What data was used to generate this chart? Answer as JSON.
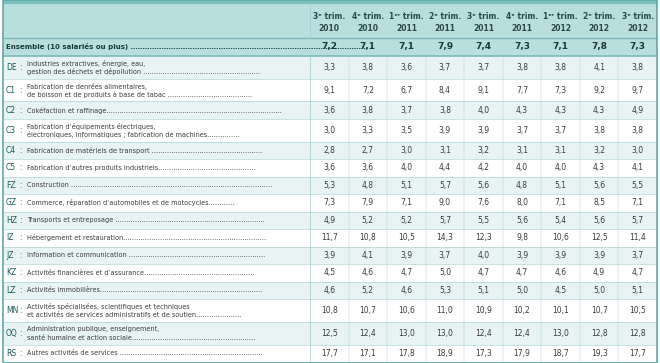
{
  "header_row1": [
    "3ᵉ trim.",
    "4ᵉ trim.",
    "1ᵉʳ trim.",
    "2ᵉ trim.",
    "3ᵉ trim.",
    "4ᵉ trim.",
    "1ᵉʳ trim.",
    "2ᵉ trim.",
    "3ᵉ trim."
  ],
  "header_row2": [
    "2010",
    "2010",
    "2011",
    "2011",
    "2011",
    "2011",
    "2012",
    "2012",
    "2012"
  ],
  "ensemble_label": "Ensemble (10 salariés ou plus) ………………………………………………………………………………………",
  "ensemble_values": [
    "7,2",
    "7,1",
    "7,1",
    "7,9",
    "7,4",
    "7,3",
    "7,1",
    "7,8",
    "7,3"
  ],
  "rows": [
    {
      "code": "DE",
      "label_line1": "Industries extractives, énergie, eau,",
      "label_line2": "gestion des déchets et dépollution ………………………………………………",
      "values": [
        "3,3",
        "3,8",
        "3,6",
        "3,7",
        "3,7",
        "3,8",
        "3,8",
        "4,1",
        "3,8"
      ]
    },
    {
      "code": "C1",
      "label_line1": "Fabrication de denrées alimentaires,",
      "label_line2": "de boisson et de produits à base de tabac …………………………………",
      "values": [
        "9,1",
        "7,2",
        "6,7",
        "8,4",
        "9,1",
        "7,7",
        "7,3",
        "9,2",
        "9,7"
      ]
    },
    {
      "code": "C2",
      "label_line1": "Cokéfaction et raffinage………………………………………………………………………",
      "label_line2": null,
      "values": [
        "3,6",
        "3,8",
        "3,7",
        "3,8",
        "4,0",
        "4,3",
        "4,3",
        "4,3",
        "4,9"
      ]
    },
    {
      "code": "C3",
      "label_line1": "Fabrication d’équipements électriques,",
      "label_line2": "électroniques, informatiques ; fabrication de machines……………",
      "values": [
        "3,0",
        "3,3",
        "3,5",
        "3,9",
        "3,9",
        "3,7",
        "3,7",
        "3,8",
        "3,8"
      ]
    },
    {
      "code": "C4",
      "label_line1": "Fabrication de matériels de transport ……………………………………………",
      "label_line2": null,
      "values": [
        "2,8",
        "2,7",
        "3,0",
        "3,1",
        "3,2",
        "3,1",
        "3,1",
        "3,2",
        "3,0"
      ]
    },
    {
      "code": "C5",
      "label_line1": "Fabrication d’autres produits industriels………………………………………",
      "label_line2": null,
      "values": [
        "3,6",
        "3,6",
        "4,0",
        "4,4",
        "4,2",
        "4,0",
        "4,0",
        "4,3",
        "4,1"
      ]
    },
    {
      "code": "FZ",
      "label_line1": "Construction …………………………………………………………………………………",
      "label_line2": null,
      "values": [
        "5,3",
        "4,8",
        "5,1",
        "5,7",
        "5,6",
        "4,8",
        "5,1",
        "5,6",
        "5,5"
      ]
    },
    {
      "code": "GZ",
      "label_line1": "Commerce, réparation d’automobiles et de motocycles…………",
      "label_line2": null,
      "values": [
        "7,3",
        "7,9",
        "7,1",
        "9,0",
        "7,6",
        "8,0",
        "7,1",
        "8,5",
        "7,1"
      ]
    },
    {
      "code": "HZ",
      "label_line1": "Transports et entreposage ……………………………………………………………",
      "label_line2": null,
      "values": [
        "4,9",
        "5,2",
        "5,2",
        "5,7",
        "5,5",
        "5,6",
        "5,4",
        "5,6",
        "5,7"
      ]
    },
    {
      "code": "IZ",
      "label_line1": "Hébergement et restauration…………………………………………………………",
      "label_line2": null,
      "values": [
        "11,7",
        "10,8",
        "10,5",
        "14,3",
        "12,3",
        "9,8",
        "10,6",
        "12,5",
        "11,4"
      ]
    },
    {
      "code": "JZ",
      "label_line1": "Information et communication ………………………………………………………",
      "label_line2": null,
      "values": [
        "3,9",
        "4,1",
        "3,9",
        "3,7",
        "4,0",
        "3,9",
        "3,9",
        "3,9",
        "3,7"
      ]
    },
    {
      "code": "KZ",
      "label_line1": "Activités financières et d’assurance……………………………………………",
      "label_line2": null,
      "values": [
        "4,5",
        "4,6",
        "4,7",
        "5,0",
        "4,7",
        "4,7",
        "4,6",
        "4,9",
        "4,7"
      ]
    },
    {
      "code": "LZ",
      "label_line1": "Activités immobilières…………………………………………………………………",
      "label_line2": null,
      "values": [
        "4,6",
        "5,2",
        "4,6",
        "5,3",
        "5,1",
        "5,0",
        "4,5",
        "5,0",
        "5,1"
      ]
    },
    {
      "code": "MN",
      "label_line1": "Activités spécialisées, scientifiques et techniques",
      "label_line2": "et activités de services administratifs et de soutien…………………",
      "values": [
        "10,8",
        "10,7",
        "10,6",
        "11,0",
        "10,9",
        "10,2",
        "10,1",
        "10,7",
        "10,5"
      ]
    },
    {
      "code": "OQ",
      "label_line1": "Administration publique, enseignement,",
      "label_line2": "santé humaine et action sociale…………………………………………………",
      "values": [
        "12,5",
        "12,4",
        "13,0",
        "13,0",
        "12,4",
        "12,4",
        "13,0",
        "12,8",
        "12,8"
      ]
    },
    {
      "code": "RS",
      "label_line1": "Autres activités de services …………………………………………………………",
      "label_line2": null,
      "values": [
        "17,7",
        "17,1",
        "17,8",
        "18,9",
        "17,3",
        "17,9",
        "18,7",
        "19,3",
        "17,7"
      ]
    }
  ],
  "bg_teal": "#b8dede",
  "bg_teal_dark": "#7bbfbf",
  "row_bg_odd": "#e8f4f4",
  "row_bg_even": "#ffffff",
  "border_color": "#9ecece",
  "text_color": "#3a3a3a",
  "code_color": "#1a5a5a",
  "bold_color": "#1a3a3a",
  "outer_border": "#5aabab"
}
